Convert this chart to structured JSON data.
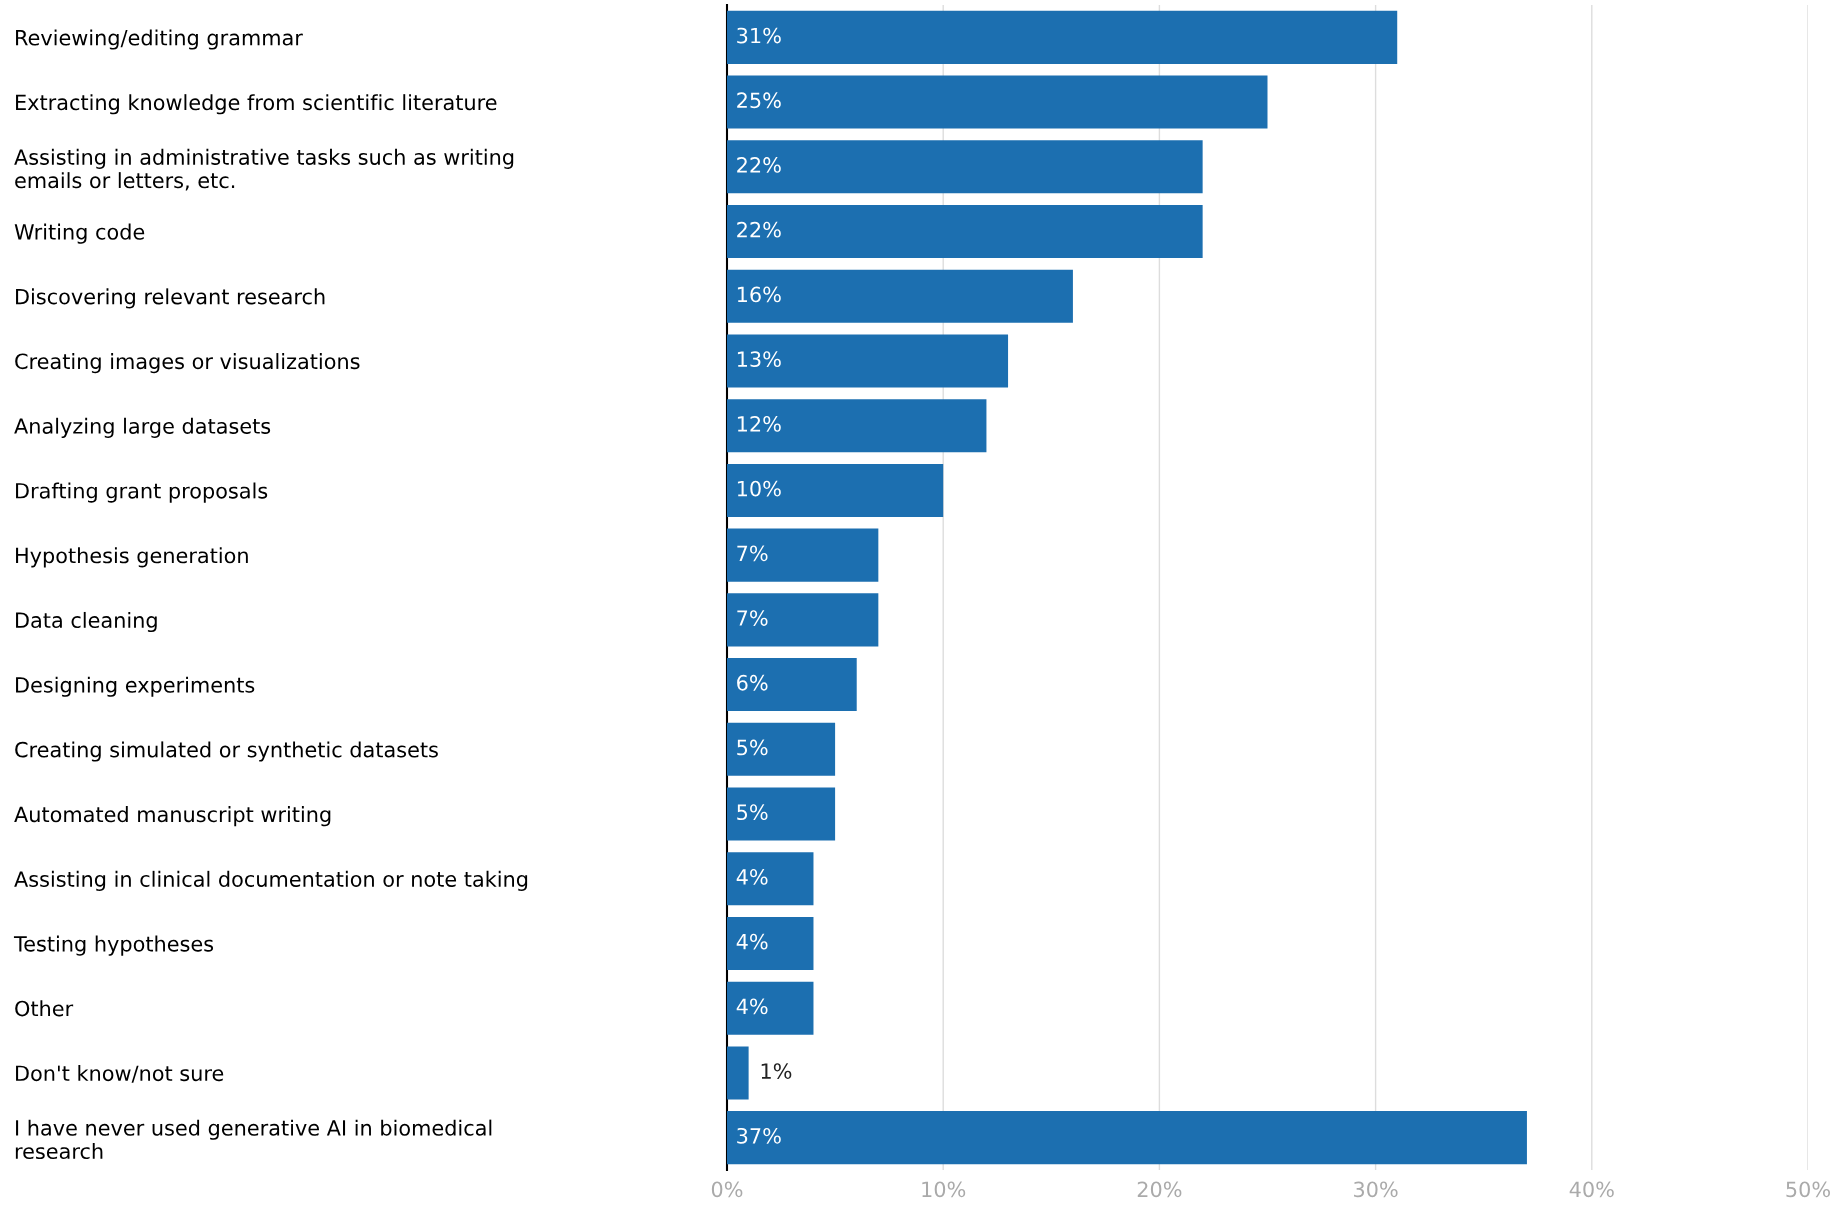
{
  "chart_data": {
    "type": "bar",
    "orientation": "horizontal",
    "categories": [
      "Reviewing/editing grammar",
      "Extracting knowledge from scientific literature",
      "Assisting in administrative tasks such as writing\nemails or letters, etc.",
      "Writing code",
      "Discovering relevant research",
      "Creating images or visualizations",
      "Analyzing large datasets",
      "Drafting grant proposals",
      "Hypothesis generation",
      "Data cleaning",
      "Designing experiments",
      "Creating simulated or synthetic datasets",
      "Automated manuscript writing",
      "Assisting in clinical documentation or note taking",
      "Testing hypotheses",
      "Other",
      "Don't know/not sure",
      "I have never used generative AI in biomedical\nresearch"
    ],
    "values": [
      31,
      25,
      22,
      22,
      16,
      13,
      12,
      10,
      7,
      7,
      6,
      5,
      5,
      4,
      4,
      4,
      1,
      37
    ],
    "value_labels": [
      "31%",
      "25%",
      "22%",
      "22%",
      "16%",
      "13%",
      "12%",
      "10%",
      "7%",
      "7%",
      "6%",
      "5%",
      "5%",
      "4%",
      "4%",
      "4%",
      "1%",
      "37%"
    ],
    "color": "#1c6fb0",
    "xlim": [
      0,
      50
    ],
    "xticks": [
      {
        "value": 0,
        "label": "0%"
      },
      {
        "value": 10,
        "label": "10%"
      },
      {
        "value": 20,
        "label": "20%"
      },
      {
        "value": 30,
        "label": "30%"
      },
      {
        "value": 40,
        "label": "40%"
      },
      {
        "value": 50,
        "label": "50%"
      }
    ],
    "grid": "x"
  }
}
